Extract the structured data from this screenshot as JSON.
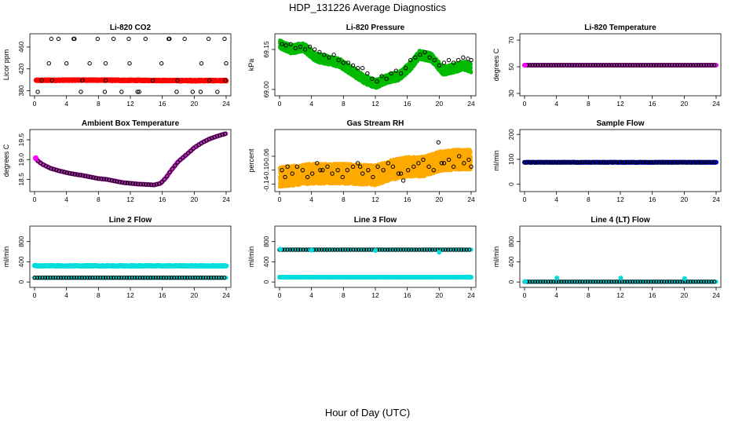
{
  "title": "HDP_131226  Average Diagnostics",
  "xlabel": "Hour of Day (UTC)",
  "chart_data": [
    {
      "type": "scatter",
      "title": "Li-820 CO2",
      "ylabel": "Licor ppm",
      "xlim": [
        0,
        24
      ],
      "ylim": [
        375,
        480
      ],
      "xticks": [
        0,
        4,
        8,
        12,
        16,
        20,
        24
      ],
      "yticks": [
        {
          "v": 380,
          "l": "380"
        },
        {
          "v": 420,
          "l": "420"
        },
        {
          "v": 460,
          "l": "460"
        }
      ],
      "grid": false,
      "series": [
        {
          "color": "#ff0000",
          "style": "band",
          "size": 3.2,
          "x": [
            0.2,
            6,
            12,
            18,
            24
          ],
          "y": [
            399,
            399.5,
            399,
            398.5,
            398.5
          ],
          "spread": 1.5,
          "step": 0.04
        },
        {
          "color": "#000000",
          "style": "open",
          "size": 2.2,
          "x": [
            0.4,
            0.9,
            1.8,
            2.1,
            3.0,
            4.0,
            4.9,
            5.8,
            6.0,
            6.9,
            7.9,
            8.8,
            8.9,
            9.9,
            10.9,
            11.9,
            11.8,
            12.9,
            13.9,
            14.8,
            15.9,
            16.8,
            17.8,
            17.9,
            18.8,
            19.8,
            20.9,
            21.8,
            21.9,
            22.9,
            23.8,
            24.0,
            2.2,
            5.0,
            8.9,
            13.1,
            16.9,
            20.8,
            23.9
          ],
          "y": [
            378,
            399,
            430,
            475,
            475,
            430,
            475,
            378,
            399,
            430,
            475,
            378,
            399,
            475,
            378,
            430,
            475,
            378,
            475,
            399,
            430,
            475,
            378,
            399,
            475,
            378,
            430,
            475,
            399,
            378,
            475,
            430,
            399,
            475,
            430,
            378,
            475,
            378,
            399
          ]
        }
      ]
    },
    {
      "type": "scatter",
      "title": "Li-820 Pressure",
      "ylabel": "kPa",
      "xlim": [
        0,
        24
      ],
      "ylim": [
        68.985,
        69.2
      ],
      "xticks": [
        0,
        4,
        8,
        12,
        16,
        20,
        24
      ],
      "yticks": [
        {
          "v": 69.0,
          "l": "69.00"
        },
        {
          "v": 69.15,
          "l": "69.15"
        }
      ],
      "grid": false,
      "series": [
        {
          "color": "#00bb00",
          "style": "cloud",
          "size": 2.0,
          "x": [
            0,
            1.5,
            3,
            4.5,
            6,
            7.5,
            9,
            10.5,
            12,
            13.5,
            15,
            16.5,
            17.5,
            19,
            20.5,
            22,
            23,
            24
          ],
          "y": [
            69.17,
            69.15,
            69.16,
            69.12,
            69.11,
            69.1,
            69.07,
            69.04,
            69.02,
            69.04,
            69.05,
            69.09,
            69.13,
            69.12,
            69.07,
            69.08,
            69.09,
            69.08
          ],
          "spread": 0.035,
          "step": 0.02
        },
        {
          "color": "#000000",
          "style": "open",
          "size": 2.2,
          "x": [
            0.3,
            0.8,
            1.4,
            2.0,
            2.6,
            3.2,
            3.8,
            4.4,
            5.0,
            5.6,
            6.2,
            6.8,
            7.4,
            8.0,
            8.6,
            9.2,
            9.8,
            10.4,
            11.0,
            11.6,
            12.2,
            12.8,
            13.4,
            14.0,
            14.6,
            15.2,
            15.8,
            16.4,
            17.0,
            17.6,
            18.2,
            18.8,
            19.4,
            20.0,
            20.6,
            21.2,
            21.8,
            22.4,
            23.0,
            23.6,
            24.0
          ],
          "y": [
            69.17,
            69.165,
            69.17,
            69.155,
            69.16,
            69.15,
            69.16,
            69.15,
            69.14,
            69.13,
            69.12,
            69.13,
            69.11,
            69.1,
            69.1,
            69.09,
            69.08,
            69.08,
            69.06,
            69.04,
            69.03,
            69.05,
            69.04,
            69.06,
            69.07,
            69.06,
            69.08,
            69.11,
            69.12,
            69.13,
            69.14,
            69.12,
            69.11,
            69.09,
            69.1,
            69.11,
            69.1,
            69.11,
            69.12,
            69.115,
            69.11
          ]
        }
      ]
    },
    {
      "type": "scatter",
      "title": "Li-820 Temperature",
      "ylabel": "degrees C",
      "xlim": [
        0,
        24
      ],
      "ylim": [
        30,
        73
      ],
      "xticks": [
        0,
        4,
        8,
        12,
        16,
        20,
        24
      ],
      "yticks": [
        {
          "v": 30,
          "l": "30"
        },
        {
          "v": 50,
          "l": "50"
        },
        {
          "v": 70,
          "l": "70"
        }
      ],
      "grid": false,
      "series": [
        {
          "color": "#cc22cc",
          "style": "band",
          "size": 3.0,
          "x": [
            0,
            24
          ],
          "y": [
            51.2,
            51.2
          ],
          "spread": 0,
          "step": 0.08
        },
        {
          "color": "#000000",
          "style": "open",
          "size": 2.2,
          "x": [
            0,
            24
          ],
          "y": [
            51.2,
            51.2
          ],
          "step": 0.33
        },
        {
          "color": "#ff00ff",
          "style": "filled",
          "size": 3.0,
          "x": [
            0.05
          ],
          "y": [
            51.2
          ]
        }
      ]
    },
    {
      "type": "scatter",
      "title": "Ambient Box Temperature",
      "ylabel": "degrees C",
      "xlim": [
        0,
        24
      ],
      "ylim": [
        18.25,
        19.7
      ],
      "xticks": [
        0,
        4,
        8,
        12,
        16,
        20,
        24
      ],
      "yticks": [
        {
          "v": 18.5,
          "l": "18.5"
        },
        {
          "v": 19.0,
          "l": "19.0"
        },
        {
          "v": 19.5,
          "l": "19.5"
        }
      ],
      "grid": false,
      "series": [
        {
          "color": "#cc22cc",
          "style": "band",
          "size": 3.0,
          "x": [
            0.1,
            0.5,
            1,
            2,
            3,
            4,
            5,
            6,
            7,
            8,
            9,
            10,
            11,
            12,
            13,
            14,
            15,
            15.8,
            16.5,
            17,
            18,
            19,
            20,
            21,
            22,
            23,
            24
          ],
          "y": [
            19.03,
            18.95,
            18.88,
            18.78,
            18.72,
            18.67,
            18.63,
            18.6,
            18.56,
            18.52,
            18.5,
            18.46,
            18.42,
            18.4,
            18.38,
            18.37,
            18.36,
            18.4,
            18.55,
            18.7,
            18.95,
            19.12,
            19.3,
            19.43,
            19.53,
            19.6,
            19.66
          ],
          "spread": 0.005,
          "step": 0.08
        },
        {
          "color": "#000000",
          "style": "open",
          "size": 2.2,
          "x": [
            0.1,
            0.5,
            1,
            2,
            3,
            4,
            5,
            6,
            7,
            8,
            9,
            10,
            11,
            12,
            13,
            14,
            15,
            15.8,
            16.5,
            17,
            18,
            19,
            20,
            21,
            22,
            23,
            24
          ],
          "y": [
            19.03,
            18.95,
            18.88,
            18.78,
            18.72,
            18.67,
            18.63,
            18.6,
            18.56,
            18.52,
            18.5,
            18.46,
            18.42,
            18.4,
            18.38,
            18.37,
            18.36,
            18.4,
            18.55,
            18.7,
            18.95,
            19.12,
            19.3,
            19.43,
            19.53,
            19.6,
            19.66
          ],
          "step": 0.33
        },
        {
          "color": "#ff00ff",
          "style": "filled",
          "size": 3.5,
          "x": [
            0.15
          ],
          "y": [
            19.04
          ]
        }
      ]
    },
    {
      "type": "scatter",
      "title": "Gas Stream RH",
      "ylabel": "percent",
      "xlim": [
        0,
        24
      ],
      "ylim": [
        -0.155,
        0.01
      ],
      "xticks": [
        0,
        4,
        8,
        12,
        16,
        20,
        24
      ],
      "yticks": [
        {
          "v": -0.14,
          "l": "-0.14"
        },
        {
          "v": -0.1,
          "l": "-0.10"
        },
        {
          "v": -0.06,
          "l": "-0.06"
        }
      ],
      "grid": false,
      "series": [
        {
          "color": "#ffaa00",
          "style": "cloud",
          "size": 2.0,
          "x": [
            0,
            4,
            8,
            12,
            14,
            16,
            18,
            20,
            22,
            24
          ],
          "y": [
            -0.12,
            -0.11,
            -0.11,
            -0.115,
            -0.1,
            -0.09,
            -0.09,
            -0.075,
            -0.07,
            -0.07
          ],
          "spread": 0.06,
          "step": 0.013
        },
        {
          "color": "#000000",
          "style": "open",
          "size": 2.2,
          "x": [
            0.3,
            1.0,
            1.6,
            2.2,
            2.9,
            3.5,
            4.1,
            4.7,
            5.4,
            6.0,
            6.6,
            7.3,
            7.9,
            8.5,
            9.2,
            9.8,
            10.4,
            11.1,
            11.7,
            12.3,
            13.0,
            13.6,
            14.2,
            14.9,
            15.5,
            16.1,
            16.8,
            17.4,
            18.0,
            18.7,
            19.3,
            19.9,
            20.6,
            21.2,
            21.8,
            22.5,
            23.1,
            23.7,
            24.0,
            0.7,
            5.1,
            10.1,
            15.2,
            20.3
          ],
          "y": [
            -0.1,
            -0.09,
            -0.11,
            -0.09,
            -0.1,
            -0.12,
            -0.11,
            -0.08,
            -0.1,
            -0.09,
            -0.11,
            -0.1,
            -0.12,
            -0.1,
            -0.09,
            -0.08,
            -0.11,
            -0.1,
            -0.12,
            -0.09,
            -0.1,
            -0.08,
            -0.09,
            -0.11,
            -0.13,
            -0.1,
            -0.09,
            -0.08,
            -0.07,
            -0.09,
            -0.1,
            -0.02,
            -0.08,
            -0.07,
            -0.09,
            -0.06,
            -0.08,
            -0.07,
            -0.09,
            -0.12,
            -0.1,
            -0.09,
            -0.11,
            -0.08
          ]
        }
      ]
    },
    {
      "type": "scatter",
      "title": "Sample Flow",
      "ylabel": "ml/min",
      "xlim": [
        0,
        24
      ],
      "ylim": [
        -20,
        210
      ],
      "xticks": [
        0,
        4,
        8,
        12,
        16,
        20,
        24
      ],
      "yticks": [
        {
          "v": 0,
          "l": "0"
        },
        {
          "v": 100,
          "l": "100"
        },
        {
          "v": 200,
          "l": "200"
        }
      ],
      "grid": false,
      "series": [
        {
          "color": "#0000cc",
          "style": "band",
          "size": 3.0,
          "x": [
            0,
            24
          ],
          "y": [
            88,
            88
          ],
          "spread": 1.2,
          "step": 0.08
        },
        {
          "color": "#000000",
          "style": "open",
          "size": 2.2,
          "x": [
            0,
            24
          ],
          "y": [
            88,
            88
          ],
          "step": 0.33
        }
      ]
    },
    {
      "type": "scatter",
      "title": "Line 2 Flow",
      "ylabel": "ml/min",
      "xlim": [
        0,
        24
      ],
      "ylim": [
        -60,
        1060
      ],
      "xticks": [
        0,
        4,
        8,
        12,
        16,
        20,
        24
      ],
      "yticks": [
        {
          "v": 0,
          "l": "0"
        },
        {
          "v": 400,
          "l": "400"
        },
        {
          "v": 800,
          "l": "800"
        }
      ],
      "grid": false,
      "series": [
        {
          "color": "#00dddd",
          "style": "band",
          "size": 3.2,
          "x": [
            0,
            24
          ],
          "y": [
            320,
            320
          ],
          "spread": 12,
          "step": 0.08
        },
        {
          "color": "#00dddd",
          "style": "band",
          "size": 2.6,
          "x": [
            0,
            24
          ],
          "y": [
            85,
            85
          ],
          "spread": 0,
          "step": 0.1
        },
        {
          "color": "#000000",
          "style": "open",
          "size": 2.2,
          "x": [
            0,
            24
          ],
          "y": [
            85,
            85
          ],
          "step": 0.33
        }
      ]
    },
    {
      "type": "scatter",
      "title": "Line 3 Flow",
      "ylabel": "ml/min",
      "xlim": [
        0,
        24
      ],
      "ylim": [
        -60,
        1060
      ],
      "xticks": [
        0,
        4,
        8,
        12,
        16,
        20,
        24
      ],
      "yticks": [
        {
          "v": 0,
          "l": "0"
        },
        {
          "v": 400,
          "l": "400"
        },
        {
          "v": 800,
          "l": "800"
        }
      ],
      "grid": false,
      "series": [
        {
          "color": "#00dddd",
          "style": "band",
          "size": 3.0,
          "x": [
            0,
            24
          ],
          "y": [
            95,
            95
          ],
          "spread": 6,
          "step": 0.08
        },
        {
          "color": "#00dddd",
          "style": "band",
          "size": 2.6,
          "x": [
            0,
            24
          ],
          "y": [
            640,
            640
          ],
          "spread": 0,
          "step": 0.1
        },
        {
          "color": "#000000",
          "style": "open",
          "size": 2.2,
          "x": [
            0,
            24
          ],
          "y": [
            640,
            640
          ],
          "step": 0.33
        },
        {
          "color": "#00dddd",
          "style": "filled",
          "size": 3.0,
          "x": [
            0.1,
            4.0,
            12.0,
            20.0
          ],
          "y": [
            650,
            630,
            625,
            590
          ]
        }
      ]
    },
    {
      "type": "scatter",
      "title": "Line 4 (LT) Flow",
      "ylabel": "ml/min",
      "xlim": [
        0,
        24
      ],
      "ylim": [
        -60,
        1060
      ],
      "xticks": [
        0,
        4,
        8,
        12,
        16,
        20,
        24
      ],
      "yticks": [
        {
          "v": 0,
          "l": "0"
        },
        {
          "v": 400,
          "l": "400"
        },
        {
          "v": 800,
          "l": "800"
        }
      ],
      "grid": false,
      "series": [
        {
          "color": "#00dddd",
          "style": "band",
          "size": 2.6,
          "x": [
            0,
            24
          ],
          "y": [
            5,
            5
          ],
          "spread": 0,
          "step": 0.1
        },
        {
          "color": "#000000",
          "style": "open",
          "size": 2.2,
          "x": [
            0,
            24
          ],
          "y": [
            5,
            5
          ],
          "step": 0.33
        },
        {
          "color": "#00dddd",
          "style": "filled",
          "size": 3.0,
          "x": [
            0.05,
            4.05,
            12.05,
            20.05
          ],
          "y": [
            10,
            80,
            80,
            70
          ]
        }
      ]
    }
  ]
}
